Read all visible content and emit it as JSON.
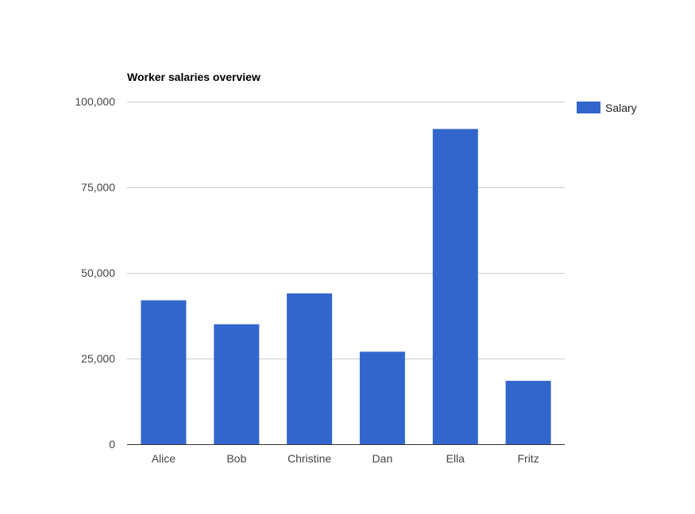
{
  "chart_data": {
    "type": "bar",
    "title": "Worker salaries overview",
    "categories": [
      "Alice",
      "Bob",
      "Christine",
      "Dan",
      "Ella",
      "Fritz"
    ],
    "series": [
      {
        "name": "Salary",
        "color": "#3366cc",
        "values": [
          42000,
          35000,
          44000,
          27000,
          92000,
          18500
        ]
      }
    ],
    "ylim": [
      0,
      100000
    ],
    "yticks": [
      0,
      25000,
      50000,
      75000,
      100000
    ],
    "ytick_labels": [
      "0",
      "25,000",
      "50,000",
      "75,000",
      "100,000"
    ],
    "grid": true,
    "legend_position": "right"
  },
  "colors": {
    "gridline": "#cccccc",
    "baseline": "#333333"
  }
}
